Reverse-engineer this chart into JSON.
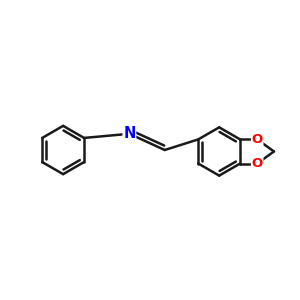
{
  "background_color": "#ffffff",
  "bond_color": "#1a1a1a",
  "nitrogen_color": "#0000ff",
  "oxygen_color": "#ff0000",
  "line_width": 1.8,
  "figsize": [
    3.0,
    3.0
  ],
  "dpi": 100,
  "xlim": [
    0,
    10
  ],
  "ylim": [
    0,
    10
  ]
}
